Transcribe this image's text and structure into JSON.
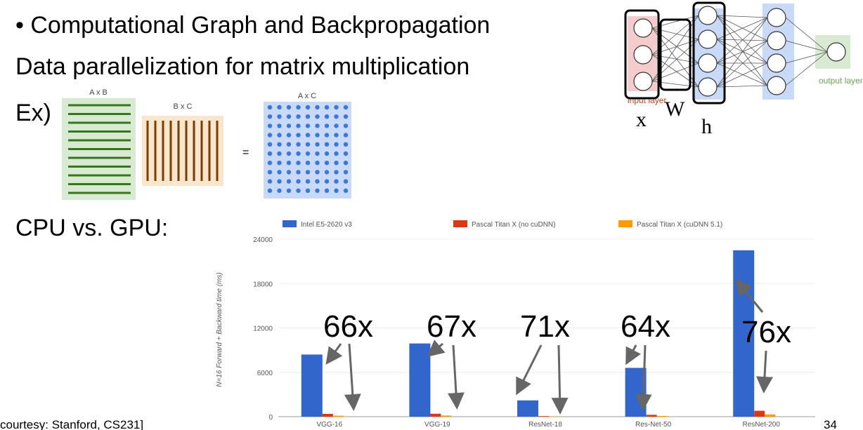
{
  "slide": {
    "bullet": "• Computational Graph and Backpropagation",
    "heading": "Data parallelization for matrix multiplication",
    "example": "Ex)",
    "comparison": "CPU vs. GPU:",
    "footer": "courtesy: Stanford, CS231]",
    "page_number": "34"
  },
  "matrices": {
    "left": "A x B",
    "middle": "B x C",
    "equals": "=",
    "right": "A x C"
  },
  "network": {
    "output_label": "output layer",
    "input_label": "input layer",
    "x": "x",
    "w": "W",
    "h": "h"
  },
  "chart_data": {
    "type": "bar",
    "ylabel": "N=16 Forward + Backward time (ms)",
    "categories": [
      "VGG-16",
      "VGG-19",
      "ResNet-18",
      "Res-Net-50",
      "ResNet-200"
    ],
    "series": [
      {
        "name": "Intel E5-2620 v3",
        "color": "#3366cc",
        "values": [
          8400,
          9900,
          2200,
          6600,
          22500
        ]
      },
      {
        "name": "Pascal Titan X (no cuDNN)",
        "color": "#dc3912",
        "values": [
          380,
          400,
          80,
          250,
          800
        ]
      },
      {
        "name": "Pascal Titan X (cuDNN 5.1)",
        "color": "#ff9900",
        "values": [
          130,
          150,
          30,
          100,
          300
        ]
      }
    ],
    "ylim": [
      0,
      24000
    ],
    "yticks": [
      0,
      6000,
      12000,
      18000,
      24000
    ],
    "grid": true,
    "annotations": [
      "66x",
      "67x",
      "71x",
      "64x",
      "76x"
    ]
  }
}
